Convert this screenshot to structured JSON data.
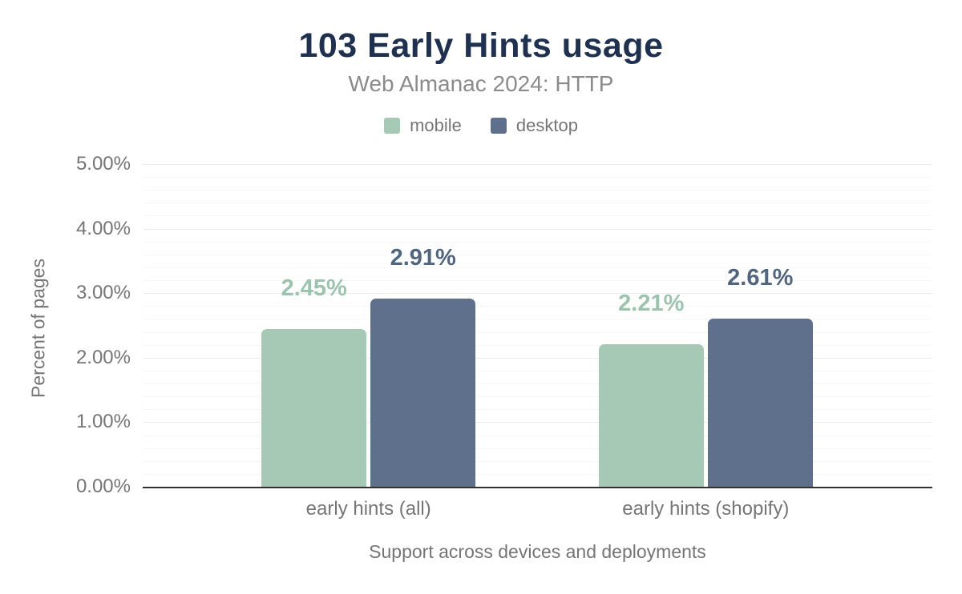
{
  "chart_data": {
    "type": "bar",
    "title": "103 Early Hints usage",
    "subtitle": "Web Almanac 2024: HTTP",
    "categories": [
      "early hints (all)",
      "early hints (shopify)"
    ],
    "series": [
      {
        "name": "mobile",
        "color": "#a6c9b6",
        "label_color": "#9cc3ae",
        "values": [
          2.45,
          2.21
        ],
        "data_labels": [
          "2.45%",
          "2.21%"
        ]
      },
      {
        "name": "desktop",
        "color": "#5f708c",
        "label_color": "#52657f",
        "values": [
          2.91,
          2.61
        ],
        "data_labels": [
          "2.91%",
          "2.61%"
        ]
      }
    ],
    "xlabel": "Support across devices and deployments",
    "ylabel": "Percent of pages",
    "ylim": [
      0,
      5
    ],
    "ytick_step": 1,
    "yminor_step": 0.2,
    "ytick_labels": [
      "0.00%",
      "1.00%",
      "2.00%",
      "3.00%",
      "4.00%",
      "5.00%"
    ],
    "grid": true,
    "legend_position": "top",
    "colors": {
      "title": "#203150",
      "subtitle": "#8b8b8b",
      "axis_text": "#757575",
      "axis_line": "#333333",
      "grid_major": "#ebebeb",
      "grid_minor": "#f7f7f7"
    }
  }
}
